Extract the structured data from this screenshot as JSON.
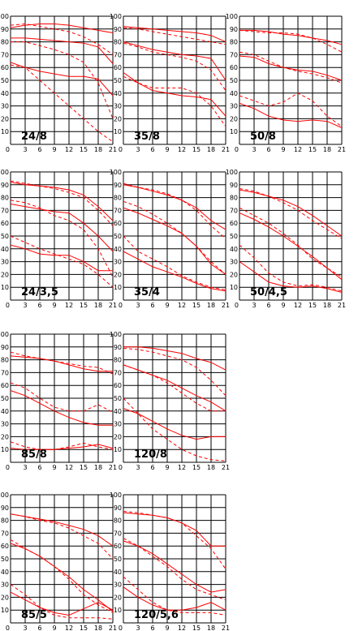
{
  "chart_data": [
    {
      "type": "line",
      "title": "24/8",
      "x": [
        0,
        3,
        6,
        9,
        12,
        15,
        18,
        21
      ],
      "xticks": [
        "0",
        "3",
        "6",
        "9",
        "12",
        "15",
        "18",
        "21"
      ],
      "yticks": [
        "10",
        "20",
        "30",
        "40",
        "50",
        "60",
        "70",
        "80",
        "90",
        "100"
      ],
      "ylim": [
        0,
        100
      ],
      "xlim": [
        0,
        21
      ],
      "grid": true,
      "series": [
        {
          "style": "solid",
          "values": [
            91,
            93,
            94,
            94,
            93,
            91,
            89,
            87
          ]
        },
        {
          "style": "solid",
          "values": [
            83,
            83,
            82,
            81,
            80,
            79,
            76,
            63
          ]
        },
        {
          "style": "solid",
          "values": [
            64,
            60,
            57,
            55,
            53,
            53,
            51,
            38
          ]
        },
        {
          "style": "dashed",
          "values": [
            93,
            94,
            92,
            90,
            88,
            84,
            78,
            70
          ]
        },
        {
          "style": "dashed",
          "values": [
            80,
            80,
            77,
            74,
            70,
            64,
            48,
            20
          ]
        },
        {
          "style": "dashed",
          "values": [
            62,
            60,
            50,
            40,
            30,
            20,
            10,
            2
          ]
        }
      ]
    },
    {
      "type": "line",
      "title": "35/8",
      "x": [
        0,
        3,
        6,
        9,
        12,
        15,
        18,
        21
      ],
      "xticks": [
        "0",
        "3",
        "6",
        "9",
        "12",
        "15",
        "18",
        "21"
      ],
      "yticks": [
        "10",
        "20",
        "30",
        "40",
        "50",
        "60",
        "70",
        "80",
        "90",
        "100"
      ],
      "ylim": [
        0,
        100
      ],
      "xlim": [
        0,
        21
      ],
      "grid": true,
      "series": [
        {
          "style": "solid",
          "values": [
            92,
            91,
            90,
            89,
            88,
            87,
            85,
            80
          ]
        },
        {
          "style": "solid",
          "values": [
            80,
            77,
            74,
            72,
            70,
            69,
            67,
            50
          ]
        },
        {
          "style": "solid",
          "values": [
            56,
            48,
            42,
            40,
            38,
            37,
            35,
            22
          ]
        },
        {
          "style": "dashed",
          "values": [
            91,
            90,
            88,
            86,
            84,
            82,
            80,
            78
          ]
        },
        {
          "style": "dashed",
          "values": [
            79,
            76,
            72,
            70,
            68,
            65,
            58,
            42
          ]
        },
        {
          "style": "dashed",
          "values": [
            53,
            48,
            44,
            44,
            44,
            40,
            30,
            14
          ]
        }
      ]
    },
    {
      "type": "line",
      "title": "50/8",
      "x": [
        0,
        3,
        6,
        9,
        12,
        15,
        18,
        21
      ],
      "xticks": [
        "0",
        "3",
        "6",
        "9",
        "12",
        "15",
        "18",
        "21"
      ],
      "yticks": [
        "10",
        "20",
        "30",
        "40",
        "50",
        "60",
        "70",
        "80",
        "90",
        "100"
      ],
      "ylim": [
        0,
        100
      ],
      "xlim": [
        0,
        21
      ],
      "grid": true,
      "series": [
        {
          "style": "solid",
          "values": [
            89,
            89,
            88,
            86,
            85,
            83,
            81,
            78
          ]
        },
        {
          "style": "solid",
          "values": [
            69,
            68,
            63,
            60,
            58,
            57,
            54,
            50
          ]
        },
        {
          "style": "solid",
          "values": [
            32,
            28,
            22,
            19,
            18,
            19,
            18,
            13
          ]
        },
        {
          "style": "dashed",
          "values": [
            89,
            88,
            87,
            87,
            86,
            83,
            78,
            72
          ]
        },
        {
          "style": "dashed",
          "values": [
            72,
            70,
            65,
            60,
            57,
            55,
            52,
            48
          ]
        },
        {
          "style": "dashed",
          "values": [
            38,
            34,
            30,
            33,
            40,
            34,
            22,
            14
          ]
        }
      ]
    },
    {
      "type": "line",
      "title": "24/3,5",
      "x": [
        0,
        3,
        6,
        9,
        12,
        15,
        18,
        21
      ],
      "xticks": [
        "0",
        "3",
        "6",
        "9",
        "12",
        "15",
        "18",
        "21"
      ],
      "yticks": [
        "10",
        "20",
        "30",
        "40",
        "50",
        "60",
        "70",
        "80",
        "90",
        "100"
      ],
      "ylim": [
        0,
        100
      ],
      "xlim": [
        0,
        21
      ],
      "grid": true,
      "series": [
        {
          "style": "solid",
          "values": [
            92,
            90,
            89,
            88,
            86,
            82,
            73,
            62
          ]
        },
        {
          "style": "solid",
          "values": [
            75,
            73,
            71,
            69,
            68,
            60,
            50,
            38
          ]
        },
        {
          "style": "solid",
          "values": [
            43,
            40,
            36,
            35,
            35,
            30,
            23,
            23
          ]
        },
        {
          "style": "dashed",
          "values": [
            93,
            91,
            89,
            87,
            84,
            80,
            70,
            58
          ]
        },
        {
          "style": "dashed",
          "values": [
            78,
            76,
            72,
            66,
            62,
            55,
            40,
            18
          ]
        },
        {
          "style": "dashed",
          "values": [
            50,
            45,
            40,
            36,
            32,
            28,
            20,
            10
          ]
        }
      ]
    },
    {
      "type": "line",
      "title": "35/4",
      "x": [
        0,
        3,
        6,
        9,
        12,
        15,
        18,
        21
      ],
      "xticks": [
        "0",
        "3",
        "6",
        "9",
        "12",
        "15",
        "18",
        "21"
      ],
      "yticks": [
        "10",
        "20",
        "30",
        "40",
        "50",
        "60",
        "70",
        "80",
        "90",
        "100"
      ],
      "ylim": [
        0,
        100
      ],
      "xlim": [
        0,
        21
      ],
      "grid": true,
      "series": [
        {
          "style": "solid",
          "values": [
            90,
            88,
            85,
            82,
            78,
            72,
            62,
            55
          ]
        },
        {
          "style": "solid",
          "values": [
            72,
            68,
            63,
            58,
            52,
            42,
            28,
            20
          ]
        },
        {
          "style": "solid",
          "values": [
            38,
            32,
            26,
            22,
            18,
            13,
            9,
            7
          ]
        },
        {
          "style": "dashed",
          "values": [
            91,
            88,
            86,
            83,
            78,
            70,
            58,
            48
          ]
        },
        {
          "style": "dashed",
          "values": [
            77,
            73,
            67,
            60,
            52,
            42,
            30,
            20
          ]
        },
        {
          "style": "dashed",
          "values": [
            50,
            38,
            32,
            26,
            19,
            14,
            10,
            8
          ]
        }
      ]
    },
    {
      "type": "line",
      "title": "50/4,5",
      "x": [
        0,
        3,
        6,
        9,
        12,
        15,
        18,
        21
      ],
      "xticks": [
        "0",
        "3",
        "6",
        "9",
        "12",
        "15",
        "18",
        "21"
      ],
      "yticks": [
        "10",
        "20",
        "30",
        "40",
        "50",
        "60",
        "70",
        "80",
        "90",
        "100"
      ],
      "ylim": [
        0,
        100
      ],
      "xlim": [
        0,
        21
      ],
      "grid": true,
      "series": [
        {
          "style": "solid",
          "values": [
            86,
            84,
            81,
            78,
            73,
            66,
            58,
            50
          ]
        },
        {
          "style": "solid",
          "values": [
            68,
            63,
            57,
            50,
            42,
            34,
            25,
            16
          ]
        },
        {
          "style": "solid",
          "values": [
            30,
            22,
            14,
            11,
            10,
            11,
            9,
            6
          ]
        },
        {
          "style": "dashed",
          "values": [
            87,
            85,
            81,
            76,
            70,
            62,
            55,
            48
          ]
        },
        {
          "style": "dashed",
          "values": [
            72,
            66,
            60,
            52,
            43,
            32,
            25,
            18
          ]
        },
        {
          "style": "dashed",
          "values": [
            43,
            33,
            21,
            14,
            11,
            12,
            10,
            7
          ]
        }
      ]
    },
    {
      "type": "line",
      "title": "85/8",
      "x": [
        0,
        3,
        6,
        9,
        12,
        15,
        18,
        21
      ],
      "xticks": [
        "0",
        "3",
        "6",
        "9",
        "12",
        "15",
        "18",
        "21"
      ],
      "yticks": [
        "10",
        "20",
        "30",
        "40",
        "50",
        "60",
        "70",
        "80",
        "90",
        "100"
      ],
      "ylim": [
        0,
        100
      ],
      "xlim": [
        0,
        21
      ],
      "grid": true,
      "series": [
        {
          "style": "solid",
          "values": [
            83,
            82,
            81,
            79,
            76,
            73,
            71,
            71
          ]
        },
        {
          "style": "solid",
          "values": [
            56,
            52,
            46,
            40,
            35,
            31,
            29,
            29
          ]
        },
        {
          "style": "solid",
          "values": [
            11,
            10,
            10,
            10,
            11,
            12,
            14,
            11
          ]
        },
        {
          "style": "dashed",
          "values": [
            86,
            83,
            81,
            79,
            77,
            75,
            74,
            69
          ]
        },
        {
          "style": "dashed",
          "values": [
            62,
            58,
            50,
            43,
            40,
            40,
            45,
            39
          ]
        },
        {
          "style": "dashed",
          "values": [
            16,
            12,
            10,
            10,
            12,
            15,
            12,
            10
          ]
        }
      ]
    },
    {
      "type": "line",
      "title": "120/8",
      "x": [
        0,
        3,
        6,
        9,
        12,
        15,
        18,
        21
      ],
      "xticks": [
        "0",
        "3",
        "6",
        "9",
        "12",
        "15",
        "18",
        "21"
      ],
      "yticks": [
        "10",
        "20",
        "30",
        "40",
        "50",
        "60",
        "70",
        "80",
        "90",
        "100"
      ],
      "ylim": [
        0,
        100
      ],
      "xlim": [
        0,
        21
      ],
      "grid": true,
      "series": [
        {
          "style": "solid",
          "values": [
            90,
            90,
            89,
            87,
            85,
            81,
            78,
            72
          ]
        },
        {
          "style": "solid",
          "values": [
            76,
            72,
            68,
            64,
            58,
            52,
            47,
            40
          ]
        },
        {
          "style": "solid",
          "values": [
            42,
            38,
            32,
            26,
            21,
            18,
            20,
            20
          ]
        },
        {
          "style": "dashed",
          "values": [
            89,
            88,
            86,
            83,
            80,
            74,
            64,
            52
          ]
        },
        {
          "style": "dashed",
          "values": [
            76,
            72,
            68,
            62,
            54,
            46,
            40,
            40
          ]
        },
        {
          "style": "dashed",
          "values": [
            50,
            38,
            26,
            18,
            10,
            5,
            2,
            1
          ]
        }
      ]
    },
    {
      "type": "line",
      "title": "85/5",
      "x": [
        0,
        3,
        6,
        9,
        12,
        15,
        18,
        21
      ],
      "xticks": [
        "0",
        "3",
        "6",
        "9",
        "12",
        "15",
        "18",
        "21"
      ],
      "yticks": [
        "10",
        "20",
        "30",
        "40",
        "50",
        "60",
        "70",
        "80",
        "90",
        "100"
      ],
      "ylim": [
        0,
        100
      ],
      "xlim": [
        0,
        21
      ],
      "grid": true,
      "series": [
        {
          "style": "solid",
          "values": [
            85,
            83,
            81,
            79,
            76,
            73,
            68,
            60
          ]
        },
        {
          "style": "solid",
          "values": [
            62,
            58,
            52,
            44,
            36,
            26,
            18,
            9
          ]
        },
        {
          "style": "solid",
          "values": [
            24,
            18,
            12,
            8,
            6,
            11,
            16,
            10
          ]
        },
        {
          "style": "dashed",
          "values": [
            85,
            83,
            80,
            78,
            74,
            68,
            62,
            50
          ]
        },
        {
          "style": "dashed",
          "values": [
            65,
            58,
            52,
            44,
            34,
            22,
            14,
            8
          ]
        },
        {
          "style": "dashed",
          "values": [
            30,
            22,
            12,
            6,
            4,
            4,
            4,
            3
          ]
        }
      ]
    },
    {
      "type": "line",
      "title": "120/5,6",
      "x": [
        0,
        3,
        6,
        9,
        12,
        15,
        18,
        21
      ],
      "xticks": [
        "0",
        "3",
        "6",
        "9",
        "12",
        "15",
        "18",
        "21"
      ],
      "yticks": [
        "10",
        "20",
        "30",
        "40",
        "50",
        "60",
        "70",
        "80",
        "90",
        "100"
      ],
      "ylim": [
        0,
        100
      ],
      "xlim": [
        0,
        21
      ],
      "grid": true,
      "series": [
        {
          "style": "solid",
          "values": [
            86,
            85,
            84,
            82,
            78,
            72,
            60,
            60
          ]
        },
        {
          "style": "solid",
          "values": [
            64,
            60,
            54,
            46,
            38,
            30,
            24,
            26
          ]
        },
        {
          "style": "solid",
          "values": [
            28,
            20,
            14,
            10,
            10,
            12,
            16,
            10
          ]
        },
        {
          "style": "dashed",
          "values": [
            87,
            86,
            84,
            82,
            78,
            68,
            58,
            42
          ]
        },
        {
          "style": "dashed",
          "values": [
            66,
            60,
            52,
            44,
            34,
            26,
            22,
            18
          ]
        },
        {
          "style": "dashed",
          "values": [
            36,
            26,
            16,
            10,
            8,
            8,
            8,
            6
          ]
        }
      ]
    }
  ]
}
